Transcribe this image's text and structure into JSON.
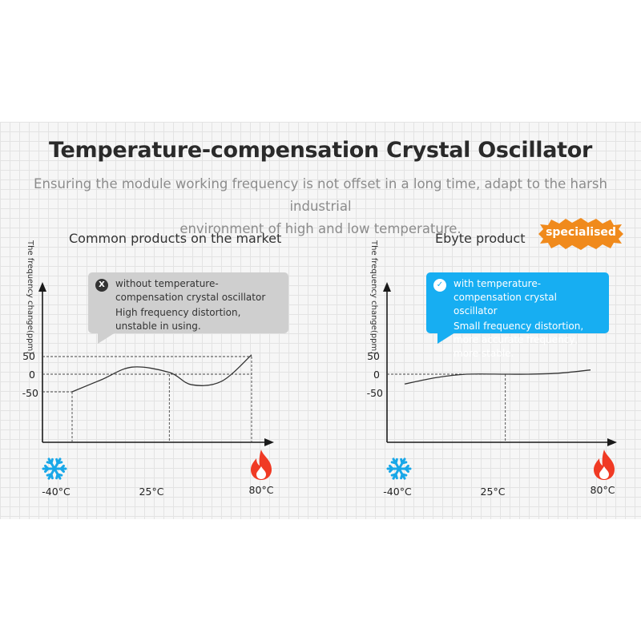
{
  "header": {
    "title": "Temperature-compensation Crystal Oscillator",
    "subtitle_line1": "Ensuring the module working frequency is not offset in a long time, adapt to the harsh industrial",
    "subtitle_line2": "environment of high and low temperature."
  },
  "colors": {
    "accent_blue": "#17aef2",
    "badge_orange": "#f08a1c",
    "flame_red": "#f03a24",
    "snow_blue": "#18a7e8",
    "gray_bubble": "#cfcfcf"
  },
  "left_panel": {
    "label": "Common products on the market",
    "ylabel": "The frequency change(ppm)",
    "bubble": {
      "icon": "x-circle-icon",
      "icon_glyph": "X",
      "heading": "without temperature-compensation crystal oscillator",
      "body": "High frequency distortion, unstable in using."
    },
    "y_ticks": [
      "50",
      "0",
      "-50"
    ],
    "x_ticks": [
      "-40°C",
      "25°C",
      "80°C"
    ],
    "cold_icon": "snowflake-icon",
    "hot_icon": "flame-icon"
  },
  "right_panel": {
    "label": "Ebyte product",
    "badge": "specialised",
    "ylabel": "The frequency change(ppm)",
    "bubble": {
      "icon": "check-circle-icon",
      "icon_glyph": "✓",
      "heading": "with temperature-compensation crystal oscillator",
      "body": "Small frequency distortion, more accurate frequency, more stable."
    },
    "y_ticks": [
      "50",
      "0",
      "-50"
    ],
    "x_ticks": [
      "-40°C",
      "25°C",
      "80°C"
    ],
    "cold_icon": "snowflake-icon",
    "hot_icon": "flame-icon"
  },
  "chart_data": [
    {
      "type": "line",
      "x": [
        -40,
        -20,
        0,
        25,
        40,
        60,
        80
      ],
      "y": [
        -50,
        -15,
        20,
        5,
        -30,
        -20,
        55
      ],
      "xlabel": "",
      "ylabel": "The frequency change(ppm)"
    },
    {
      "type": "line",
      "x": [
        -40,
        -20,
        0,
        25,
        40,
        60,
        80
      ],
      "y": [
        -28,
        -10,
        0,
        0,
        0,
        3,
        12
      ],
      "xlabel": "",
      "ylabel": "The frequency change(ppm)"
    }
  ]
}
